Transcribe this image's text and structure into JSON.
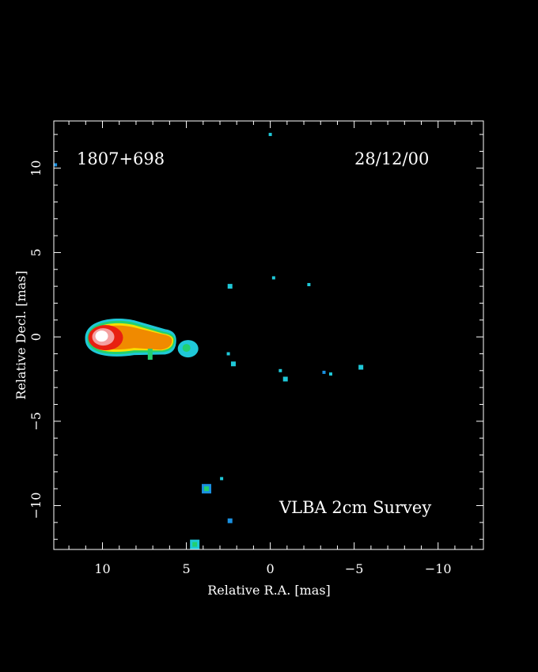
{
  "chart_data": {
    "type": "heatmap",
    "source_name": "1807+698",
    "epoch": "28/12/00",
    "survey_label": "VLBA 2cm Survey",
    "xlabel": "Relative R.A. [mas]",
    "ylabel": "Relative Decl. [mas]",
    "xlim": [
      12.9,
      -12.7
    ],
    "ylim": [
      -12.6,
      12.8
    ],
    "xticks": [
      10,
      5,
      0,
      -5,
      -10
    ],
    "yticks": [
      10,
      5,
      0,
      -5,
      -10
    ],
    "xtick_labels": [
      "10",
      "5",
      "0",
      "−5",
      "−10"
    ],
    "ytick_labels": [
      "10",
      "5",
      "0",
      "−5",
      "−10"
    ],
    "colors": {
      "background": "#000000",
      "axes": "#ffffff",
      "level_low": "#1fc8d8",
      "level_mid": "#22d070",
      "level_high": "#f5e000",
      "level_higher": "#f08a00",
      "level_peak": "#e82010",
      "level_max": "#ffffff"
    },
    "features": [
      {
        "kind": "core",
        "ra": 10.0,
        "dec": 0.0
      },
      {
        "kind": "jet",
        "ra_start": 10.0,
        "ra_end": 6.0,
        "dec": -0.2
      },
      {
        "kind": "knot",
        "ra": 4.9,
        "dec": -0.7
      },
      {
        "kind": "blob",
        "ra": 3.8,
        "dec": -9.0
      },
      {
        "kind": "blob",
        "ra": 2.9,
        "dec": -8.4
      },
      {
        "kind": "blob",
        "ra": 4.5,
        "dec": -12.3
      },
      {
        "kind": "blob",
        "ra": 2.4,
        "dec": 3.0
      },
      {
        "kind": "blob",
        "ra": 0.0,
        "dec": 12.0
      },
      {
        "kind": "blob",
        "ra": 12.8,
        "dec": 10.2
      },
      {
        "kind": "blob",
        "ra": 2.2,
        "dec": -1.6
      },
      {
        "kind": "blob",
        "ra": 2.5,
        "dec": -1.0
      },
      {
        "kind": "blob",
        "ra": -0.6,
        "dec": -2.0
      },
      {
        "kind": "blob",
        "ra": -0.9,
        "dec": -2.5
      },
      {
        "kind": "blob",
        "ra": -3.2,
        "dec": -2.1
      },
      {
        "kind": "blob",
        "ra": -3.6,
        "dec": -2.2
      },
      {
        "kind": "blob",
        "ra": -5.4,
        "dec": -1.8
      },
      {
        "kind": "blob",
        "ra": -0.2,
        "dec": 3.5
      },
      {
        "kind": "blob",
        "ra": -2.3,
        "dec": 3.1
      },
      {
        "kind": "blob",
        "ra": 2.4,
        "dec": -10.9
      }
    ]
  }
}
